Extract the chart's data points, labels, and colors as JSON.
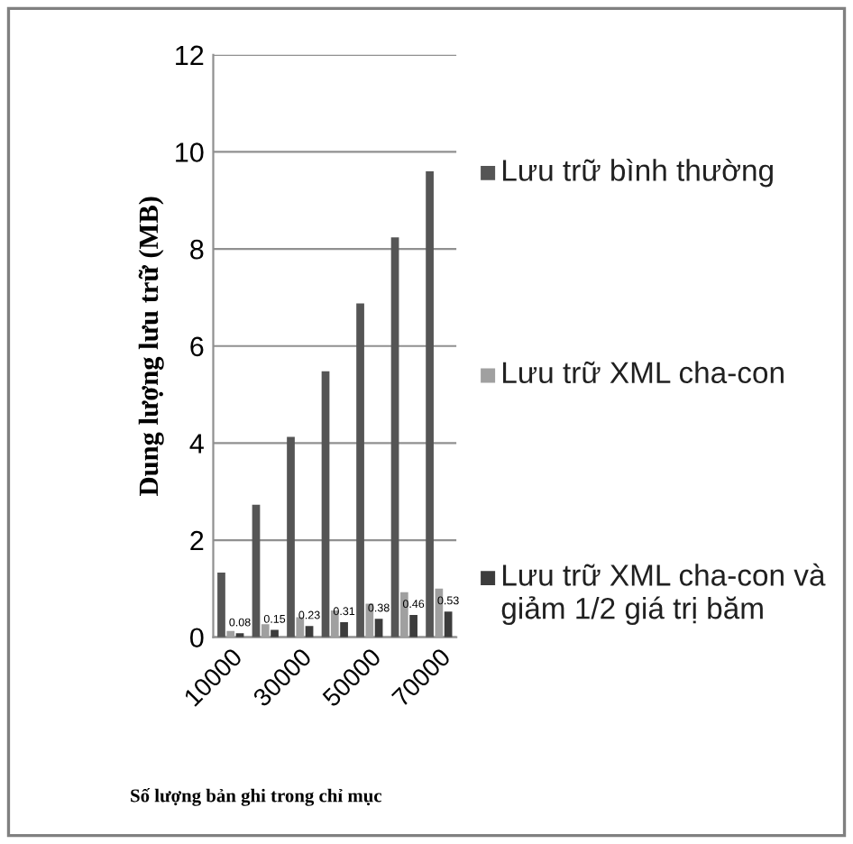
{
  "chart_data": {
    "type": "bar",
    "xlabel": "Số lượng bản ghi trong chỉ mục",
    "ylabel": "Dung lượng lưu trữ (MB)",
    "categories": [
      "10000",
      null,
      "30000",
      null,
      "50000",
      null,
      "70000"
    ],
    "series": [
      {
        "name": "Lưu trữ bình thường",
        "color": "#555555",
        "values": [
          1.33,
          2.73,
          4.13,
          5.48,
          6.88,
          8.24,
          9.6
        ]
      },
      {
        "name": "Lưu trữ XML cha-con",
        "color": "#a0a0a0",
        "values": [
          0.13,
          0.27,
          0.41,
          0.55,
          0.69,
          0.93,
          1.0
        ]
      },
      {
        "name": "Lưu trữ XML cha-con và giảm 1/2 giá trị băm",
        "color": "#3c3c3c",
        "values": [
          0.08,
          0.15,
          0.23,
          0.31,
          0.38,
          0.46,
          0.53
        ],
        "value_labels": [
          "0.08",
          "0.15",
          "0.23",
          "0.31",
          "0.38",
          "0.46",
          "0.53"
        ]
      }
    ],
    "ylim": [
      0,
      12
    ],
    "yticks": [
      0,
      2,
      4,
      6,
      8,
      10,
      12
    ],
    "grid": "y",
    "legend": "right"
  }
}
